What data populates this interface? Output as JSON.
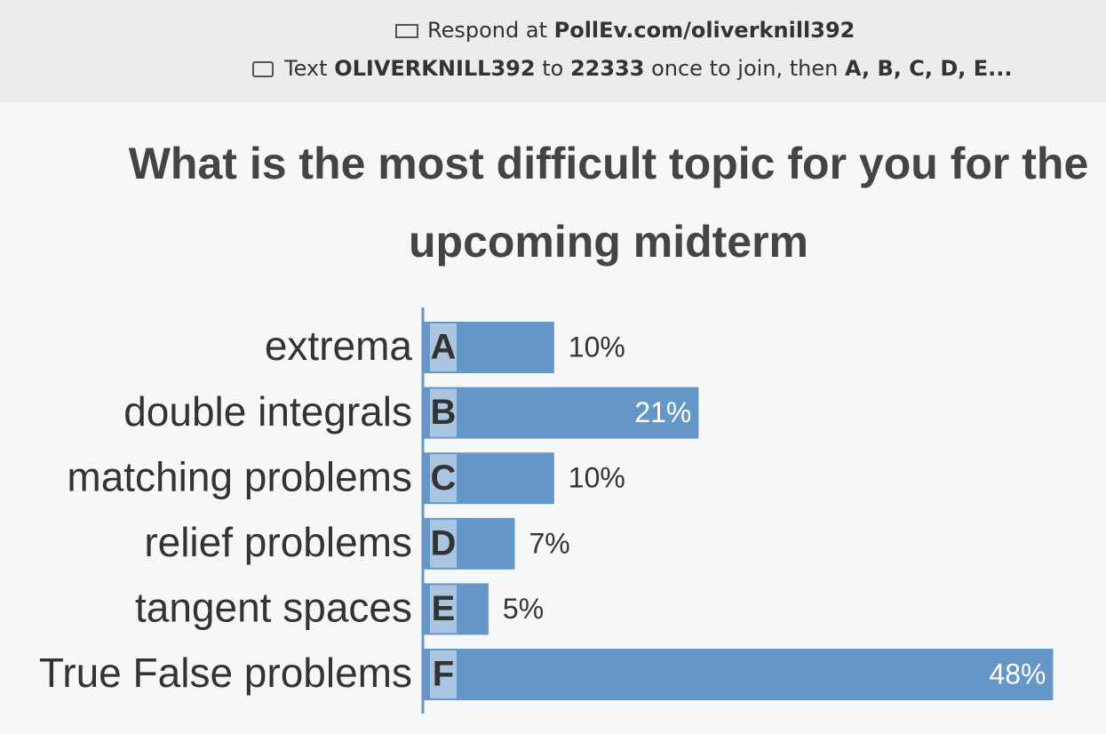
{
  "header": {
    "line1": [
      "Respond at",
      "PollEv.com/oliverknill392"
    ],
    "line2": [
      "Text",
      "OLIVERKNILL392",
      "to",
      "22333",
      "once to join, then",
      "A, B, C, D, E..."
    ]
  },
  "chart_data": {
    "type": "bar",
    "orientation": "horizontal",
    "title": "What is the most difficult topic for you for the upcoming midterm",
    "categories": [
      "extrema",
      "double integrals",
      "matching problems",
      "relief problems",
      "tangent spaces",
      "True False problems"
    ],
    "letters": [
      "A",
      "B",
      "C",
      "D",
      "E",
      "F"
    ],
    "values": [
      10,
      21,
      10,
      7,
      5,
      48
    ],
    "value_labels": [
      "10%",
      "21%",
      "10%",
      "7%",
      "5%",
      "48%"
    ],
    "color": "#6596c8",
    "xlim": [
      0,
      50
    ]
  }
}
